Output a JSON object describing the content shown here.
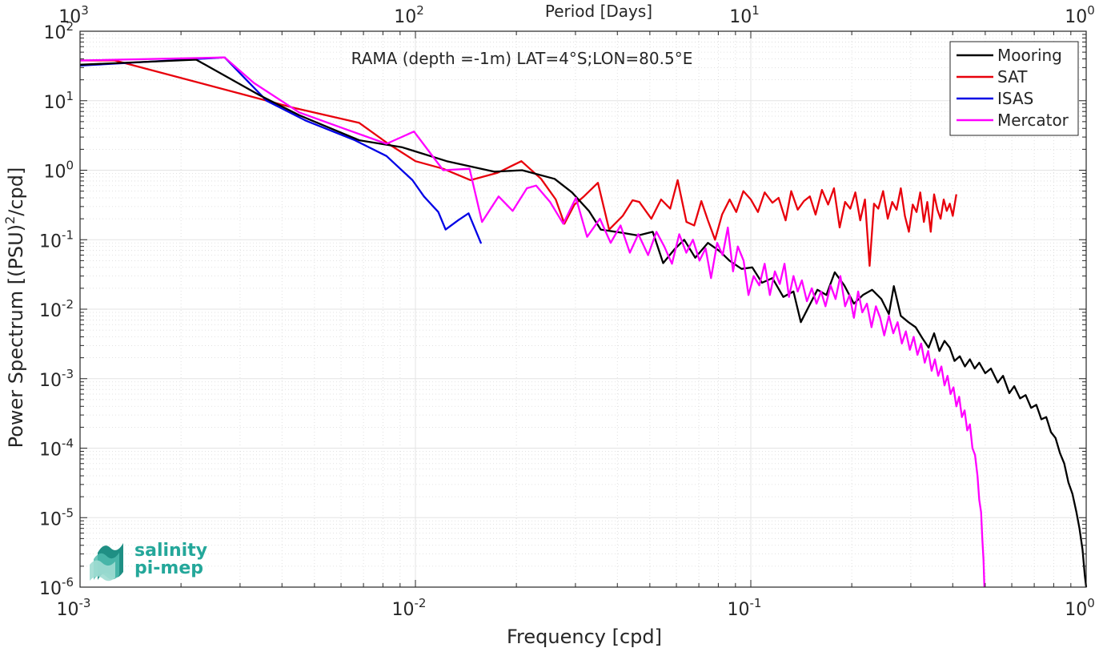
{
  "chart_data": {
    "type": "line",
    "title": "RAMA (depth =-1m) LAT=4°S;LON=80.5°E",
    "xlabel": "Frequency [cpd]",
    "ylabel": "Power Spectrum [(PSU)",
    "ylabel_sup": "2",
    "ylabel_tail": "/cpd]",
    "top_xlabel": "Period [Days]",
    "x_scale": "log",
    "y_scale": "log",
    "xlim": [
      0.001,
      1
    ],
    "ylim": [
      1e-06,
      100
    ],
    "grid": true,
    "legend_position": "top-right",
    "x_ticks": [
      {
        "base": "10",
        "exp": "-3"
      },
      {
        "base": "10",
        "exp": "-2"
      },
      {
        "base": "10",
        "exp": "-1"
      },
      {
        "base": "10",
        "exp": "0"
      }
    ],
    "top_x_ticks": [
      {
        "base": "10",
        "exp": "3"
      },
      {
        "base": "10",
        "exp": "2"
      },
      {
        "base": "10",
        "exp": "1"
      },
      {
        "base": "10",
        "exp": "0"
      }
    ],
    "y_ticks": [
      {
        "base": "10",
        "exp": "2"
      },
      {
        "base": "10",
        "exp": "1"
      },
      {
        "base": "10",
        "exp": "0"
      },
      {
        "base": "10",
        "exp": "-1"
      },
      {
        "base": "10",
        "exp": "-2"
      },
      {
        "base": "10",
        "exp": "-3"
      },
      {
        "base": "10",
        "exp": "-4"
      },
      {
        "base": "10",
        "exp": "-5"
      },
      {
        "base": "10",
        "exp": "-6"
      }
    ],
    "series": [
      {
        "name": "Mooring",
        "color": "#000000",
        "points": [
          [
            0.001,
            33
          ],
          [
            0.00222,
            39
          ],
          [
            0.00343,
            12
          ],
          [
            0.0045,
            6.2
          ],
          [
            0.0068,
            2.7
          ],
          [
            0.0091,
            2.15
          ],
          [
            0.0124,
            1.35
          ],
          [
            0.0172,
            0.95
          ],
          [
            0.0208,
            1.0
          ],
          [
            0.026,
            0.75
          ],
          [
            0.0293,
            0.48
          ],
          [
            0.0329,
            0.26
          ],
          [
            0.0357,
            0.14
          ],
          [
            0.0415,
            0.125
          ],
          [
            0.0461,
            0.115
          ],
          [
            0.051,
            0.13
          ],
          [
            0.0548,
            0.046
          ],
          [
            0.0591,
            0.072
          ],
          [
            0.0633,
            0.1
          ],
          [
            0.0683,
            0.055
          ],
          [
            0.0745,
            0.09
          ],
          [
            0.0809,
            0.068
          ],
          [
            0.0864,
            0.05
          ],
          [
            0.0939,
            0.038
          ],
          [
            0.101,
            0.04
          ],
          [
            0.108,
            0.024
          ],
          [
            0.116,
            0.028
          ],
          [
            0.125,
            0.015
          ],
          [
            0.134,
            0.018
          ],
          [
            0.141,
            0.0065
          ],
          [
            0.149,
            0.011
          ],
          [
            0.158,
            0.019
          ],
          [
            0.168,
            0.016
          ],
          [
            0.178,
            0.034
          ],
          [
            0.19,
            0.022
          ],
          [
            0.203,
            0.012
          ],
          [
            0.216,
            0.016
          ],
          [
            0.23,
            0.019
          ],
          [
            0.245,
            0.014
          ],
          [
            0.258,
            0.0085
          ],
          [
            0.267,
            0.0215
          ],
          [
            0.28,
            0.008
          ],
          [
            0.295,
            0.0065
          ],
          [
            0.31,
            0.0055
          ],
          [
            0.325,
            0.0038
          ],
          [
            0.339,
            0.0028
          ],
          [
            0.352,
            0.0045
          ],
          [
            0.365,
            0.0025
          ],
          [
            0.378,
            0.0035
          ],
          [
            0.392,
            0.0028
          ],
          [
            0.405,
            0.0018
          ],
          [
            0.42,
            0.0021
          ],
          [
            0.435,
            0.0015
          ],
          [
            0.45,
            0.0019
          ],
          [
            0.465,
            0.0014
          ],
          [
            0.48,
            0.0017
          ],
          [
            0.5,
            0.0012
          ],
          [
            0.52,
            0.0014
          ],
          [
            0.545,
            0.00088
          ],
          [
            0.565,
            0.0011
          ],
          [
            0.59,
            0.00062
          ],
          [
            0.61,
            0.00078
          ],
          [
            0.635,
            0.00052
          ],
          [
            0.66,
            0.00058
          ],
          [
            0.685,
            0.00038
          ],
          [
            0.71,
            0.00042
          ],
          [
            0.735,
            0.00026
          ],
          [
            0.76,
            0.00028
          ],
          [
            0.785,
            0.00017
          ],
          [
            0.81,
            0.00014
          ],
          [
            0.835,
            8.5e-05
          ],
          [
            0.86,
            6e-05
          ],
          [
            0.885,
            3.2e-05
          ],
          [
            0.91,
            2.2e-05
          ],
          [
            0.935,
            1.2e-05
          ],
          [
            0.955,
            7e-06
          ],
          [
            0.975,
            3.5e-06
          ],
          [
            0.99,
            1.5e-06
          ],
          [
            1.0,
            1e-06
          ]
        ]
      },
      {
        "name": "SAT",
        "color": "#e8000b",
        "points": [
          [
            0.001,
            38
          ],
          [
            0.00127,
            38
          ],
          [
            0.0043,
            8
          ],
          [
            0.0068,
            4.8
          ],
          [
            0.0083,
            2.4
          ],
          [
            0.01,
            1.35
          ],
          [
            0.0121,
            1.05
          ],
          [
            0.0146,
            0.72
          ],
          [
            0.0176,
            0.92
          ],
          [
            0.0207,
            1.35
          ],
          [
            0.0237,
            0.75
          ],
          [
            0.0262,
            0.38
          ],
          [
            0.0278,
            0.17
          ],
          [
            0.0298,
            0.32
          ],
          [
            0.0318,
            0.42
          ],
          [
            0.035,
            0.66
          ],
          [
            0.0378,
            0.14
          ],
          [
            0.0415,
            0.22
          ],
          [
            0.0444,
            0.37
          ],
          [
            0.0465,
            0.35
          ],
          [
            0.0505,
            0.2
          ],
          [
            0.054,
            0.38
          ],
          [
            0.0575,
            0.28
          ],
          [
            0.0605,
            0.72
          ],
          [
            0.0643,
            0.18
          ],
          [
            0.0678,
            0.16
          ],
          [
            0.0712,
            0.36
          ],
          [
            0.0745,
            0.19
          ],
          [
            0.0782,
            0.1
          ],
          [
            0.0821,
            0.23
          ],
          [
            0.0865,
            0.38
          ],
          [
            0.0905,
            0.25
          ],
          [
            0.095,
            0.5
          ],
          [
            0.1,
            0.38
          ],
          [
            0.105,
            0.25
          ],
          [
            0.11,
            0.48
          ],
          [
            0.116,
            0.34
          ],
          [
            0.121,
            0.4
          ],
          [
            0.127,
            0.19
          ],
          [
            0.132,
            0.5
          ],
          [
            0.138,
            0.27
          ],
          [
            0.144,
            0.36
          ],
          [
            0.15,
            0.42
          ],
          [
            0.156,
            0.23
          ],
          [
            0.163,
            0.52
          ],
          [
            0.17,
            0.32
          ],
          [
            0.177,
            0.55
          ],
          [
            0.184,
            0.15
          ],
          [
            0.191,
            0.35
          ],
          [
            0.198,
            0.28
          ],
          [
            0.205,
            0.48
          ],
          [
            0.212,
            0.19
          ],
          [
            0.219,
            0.38
          ],
          [
            0.226,
            0.042
          ],
          [
            0.233,
            0.33
          ],
          [
            0.24,
            0.28
          ],
          [
            0.248,
            0.5
          ],
          [
            0.256,
            0.2
          ],
          [
            0.264,
            0.35
          ],
          [
            0.272,
            0.27
          ],
          [
            0.28,
            0.55
          ],
          [
            0.288,
            0.22
          ],
          [
            0.296,
            0.13
          ],
          [
            0.304,
            0.32
          ],
          [
            0.312,
            0.25
          ],
          [
            0.32,
            0.48
          ],
          [
            0.328,
            0.18
          ],
          [
            0.336,
            0.35
          ],
          [
            0.344,
            0.13
          ],
          [
            0.352,
            0.45
          ],
          [
            0.36,
            0.27
          ],
          [
            0.368,
            0.2
          ],
          [
            0.376,
            0.38
          ],
          [
            0.384,
            0.26
          ],
          [
            0.392,
            0.33
          ],
          [
            0.4,
            0.22
          ],
          [
            0.41,
            0.45
          ]
        ]
      },
      {
        "name": "ISAS",
        "color": "#0000e6",
        "points": [
          [
            0.001,
            32
          ],
          [
            0.0027,
            42
          ],
          [
            0.0036,
            10
          ],
          [
            0.0047,
            5.2
          ],
          [
            0.0066,
            2.7
          ],
          [
            0.0082,
            1.6
          ],
          [
            0.0098,
            0.72
          ],
          [
            0.0106,
            0.42
          ],
          [
            0.0117,
            0.25
          ],
          [
            0.0123,
            0.14
          ],
          [
            0.0134,
            0.19
          ],
          [
            0.0144,
            0.24
          ],
          [
            0.0157,
            0.088
          ]
        ]
      },
      {
        "name": "Mercator",
        "color": "#ff00ff",
        "points": [
          [
            0.001,
            38
          ],
          [
            0.0027,
            42
          ],
          [
            0.0033,
            18
          ],
          [
            0.0045,
            6.8
          ],
          [
            0.0061,
            4.0
          ],
          [
            0.0082,
            2.4
          ],
          [
            0.0099,
            3.6
          ],
          [
            0.0121,
            1.0
          ],
          [
            0.0145,
            1.05
          ],
          [
            0.0158,
            0.18
          ],
          [
            0.0177,
            0.42
          ],
          [
            0.0195,
            0.26
          ],
          [
            0.0215,
            0.55
          ],
          [
            0.0229,
            0.6
          ],
          [
            0.0252,
            0.35
          ],
          [
            0.0276,
            0.17
          ],
          [
            0.0301,
            0.4
          ],
          [
            0.0325,
            0.11
          ],
          [
            0.0355,
            0.2
          ],
          [
            0.0382,
            0.09
          ],
          [
            0.0409,
            0.16
          ],
          [
            0.0436,
            0.065
          ],
          [
            0.0462,
            0.12
          ],
          [
            0.0494,
            0.06
          ],
          [
            0.0523,
            0.13
          ],
          [
            0.0552,
            0.08
          ],
          [
            0.0582,
            0.045
          ],
          [
            0.0612,
            0.12
          ],
          [
            0.0642,
            0.065
          ],
          [
            0.0672,
            0.1
          ],
          [
            0.0703,
            0.05
          ],
          [
            0.0733,
            0.075
          ],
          [
            0.0761,
            0.028
          ],
          [
            0.0794,
            0.09
          ],
          [
            0.0824,
            0.06
          ],
          [
            0.0854,
            0.15
          ],
          [
            0.0885,
            0.035
          ],
          [
            0.0915,
            0.08
          ],
          [
            0.0952,
            0.05
          ],
          [
            0.0984,
            0.016
          ],
          [
            0.102,
            0.03
          ],
          [
            0.106,
            0.022
          ],
          [
            0.11,
            0.045
          ],
          [
            0.114,
            0.016
          ],
          [
            0.118,
            0.035
          ],
          [
            0.122,
            0.023
          ],
          [
            0.126,
            0.045
          ],
          [
            0.13,
            0.015
          ],
          [
            0.134,
            0.03
          ],
          [
            0.138,
            0.018
          ],
          [
            0.142,
            0.026
          ],
          [
            0.147,
            0.013
          ],
          [
            0.152,
            0.02
          ],
          [
            0.157,
            0.012
          ],
          [
            0.162,
            0.018
          ],
          [
            0.167,
            0.011
          ],
          [
            0.173,
            0.022
          ],
          [
            0.179,
            0.014
          ],
          [
            0.185,
            0.03
          ],
          [
            0.191,
            0.011
          ],
          [
            0.197,
            0.016
          ],
          [
            0.203,
            0.0075
          ],
          [
            0.209,
            0.018
          ],
          [
            0.215,
            0.009
          ],
          [
            0.222,
            0.012
          ],
          [
            0.229,
            0.0055
          ],
          [
            0.236,
            0.011
          ],
          [
            0.243,
            0.0075
          ],
          [
            0.25,
            0.0042
          ],
          [
            0.258,
            0.008
          ],
          [
            0.266,
            0.0045
          ],
          [
            0.274,
            0.0065
          ],
          [
            0.282,
            0.0032
          ],
          [
            0.29,
            0.0048
          ],
          [
            0.298,
            0.0026
          ],
          [
            0.306,
            0.004
          ],
          [
            0.314,
            0.0022
          ],
          [
            0.322,
            0.0032
          ],
          [
            0.33,
            0.0017
          ],
          [
            0.338,
            0.0025
          ],
          [
            0.346,
            0.0013
          ],
          [
            0.354,
            0.0019
          ],
          [
            0.362,
            0.0011
          ],
          [
            0.37,
            0.0015
          ],
          [
            0.378,
            0.0008
          ],
          [
            0.386,
            0.0011
          ],
          [
            0.394,
            0.0006
          ],
          [
            0.402,
            0.00075
          ],
          [
            0.41,
            0.0004
          ],
          [
            0.418,
            0.00055
          ],
          [
            0.426,
            0.00028
          ],
          [
            0.434,
            0.00035
          ],
          [
            0.442,
            0.00018
          ],
          [
            0.45,
            0.00022
          ],
          [
            0.458,
            0.0001
          ],
          [
            0.466,
            8e-05
          ],
          [
            0.474,
            4e-05
          ],
          [
            0.48,
            1.8e-05
          ],
          [
            0.486,
            1.2e-05
          ],
          [
            0.49,
            5e-06
          ],
          [
            0.494,
            2.5e-06
          ],
          [
            0.497,
            1e-06
          ]
        ]
      }
    ]
  },
  "logo": {
    "line1": "salinity",
    "line2": "pi-mep",
    "color": "#24a79a"
  }
}
